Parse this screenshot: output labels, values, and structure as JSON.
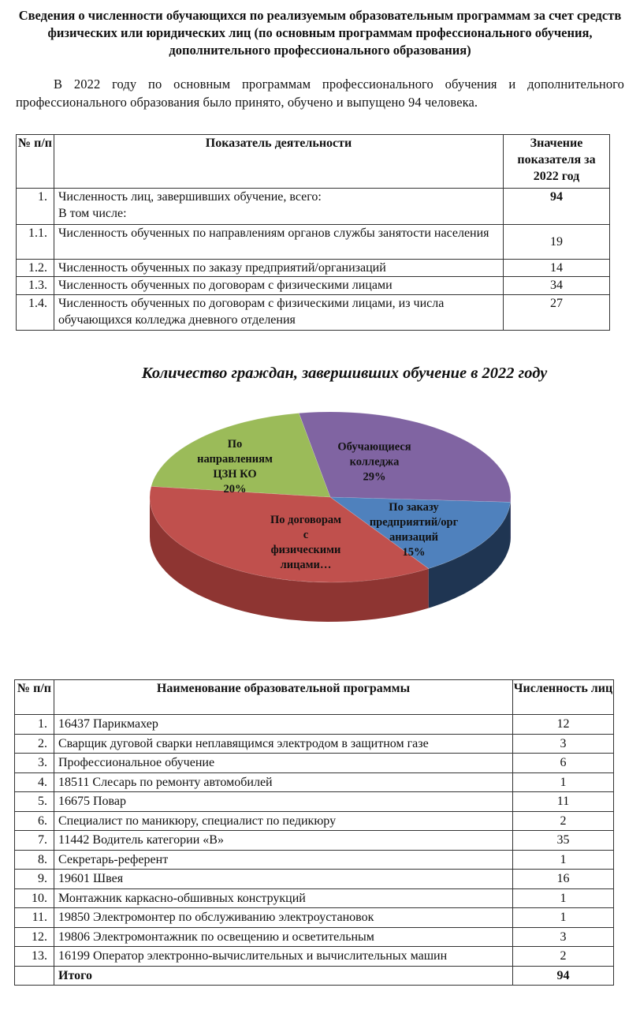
{
  "heading": "Сведения о численности обучающихся по реализуемым образовательным программам за счет средств физических или юридических лиц (по основным программам профессионального обучения, дополнительного профессионального образования)",
  "paragraph": "В 2022 году по основным программам профессионального обучения и дополнительного профессионального образования было принято, обучено и выпущено 94 человека.",
  "table1": {
    "headers": [
      "№ п/п",
      "Показатель деятельности",
      "Значение показателя за 2022 год"
    ],
    "rows": [
      {
        "num": "1.",
        "text": "Численность лиц, завершивших обучение, всего:",
        "text2": "В том числе:",
        "value": "94"
      },
      {
        "num": "1.1.",
        "text": "Численность обученных по направлениям органов службы занятости населения",
        "value": "19"
      },
      {
        "num": "1.2.",
        "text": "Численность обученных по заказу предприятий/организаций",
        "value": "14"
      },
      {
        "num": "1.3.",
        "text": "Численность обученных по договорам с физическими лицами",
        "value": "34"
      },
      {
        "num": "1.4.",
        "text": "Численность обученных по договорам с физическими лицами, из числа обучающихся колледжа дневного отделения",
        "value": "27"
      }
    ]
  },
  "chart_data": {
    "type": "pie",
    "title": "Количество граждан, завершивших обучение  в 2022 году",
    "style": "3d",
    "legend": "none",
    "slices": [
      {
        "label": "Обучающиеся\nколледжа\n29%",
        "value": 27,
        "color": "#8064a2",
        "side": "#5b4677"
      },
      {
        "label": "По заказу\nпредприятий/орг\nанизаций\n15%",
        "value": 14,
        "color": "#4f81bd",
        "side": "#1f3552"
      },
      {
        "label": "По договорам\nс\nфизическими\nлицами…",
        "value": 34,
        "color": "#c0504d",
        "side": "#8e3532"
      },
      {
        "label": "По\nнаправлениям\nЦЗН КО\n20%",
        "value": 19,
        "color": "#9bbb59",
        "side": "#6e8a3a"
      }
    ]
  },
  "table2": {
    "headers": [
      "№ п/п",
      "Наименование образовательной программы",
      "Численность лиц"
    ],
    "rows": [
      {
        "num": "1.",
        "name": "16437 Парикмахер",
        "count": "12"
      },
      {
        "num": "2.",
        "name": "Сварщик дуговой сварки неплавящимся электродом в защитном газе",
        "count": "3"
      },
      {
        "num": "3.",
        "name": "Профессиональное обучение",
        "count": "6"
      },
      {
        "num": "4.",
        "name": "18511 Слесарь по ремонту автомобилей",
        "count": "1"
      },
      {
        "num": "5.",
        "name": "16675 Повар",
        "count": "11"
      },
      {
        "num": "6.",
        "name": "Специалист по маникюру, специалист по педикюру",
        "count": "2"
      },
      {
        "num": "7.",
        "name": "11442 Водитель категории «В»",
        "count": "35"
      },
      {
        "num": "8.",
        "name": "Секретарь-референт",
        "count": "1"
      },
      {
        "num": "9.",
        "name": "19601 Швея",
        "count": "16"
      },
      {
        "num": "10.",
        "name": "Монтажник каркасно-обшивных конструкций",
        "count": "1"
      },
      {
        "num": "11.",
        "name": "19850 Электромонтер по обслуживанию электроустановок",
        "count": "1"
      },
      {
        "num": "12.",
        "name": "19806 Электромонтажник по освещению и осветительным",
        "count": "3"
      },
      {
        "num": "13.",
        "name": "16199 Оператор электронно-вычислительных и вычислительных машин",
        "count": "2"
      }
    ],
    "total_label": "Итого",
    "total_value": "94"
  }
}
